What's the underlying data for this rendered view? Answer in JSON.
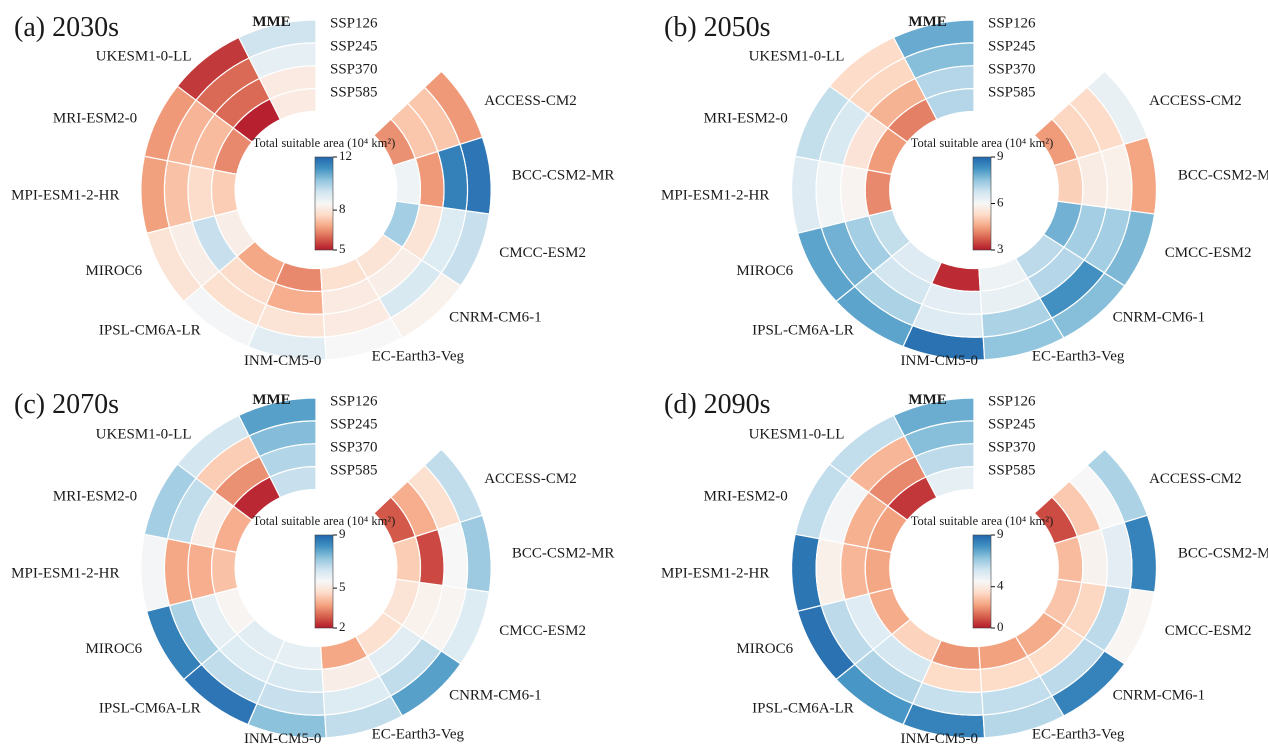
{
  "figure_type": "multi-panel polar heatmap (circular ring heatmaps)",
  "models": [
    "MME",
    "UKESM1-0-LL",
    "MRI-ESM2-0",
    "MPI-ESM1-2-HR",
    "MIROC6",
    "IPSL-CM6A-LR",
    "INM-CM5-0",
    "EC-Earth3-Veg",
    "CNRM-CM6-1",
    "CMCC-ESM2",
    "BCC-CSM2-MR",
    "ACCESS-CM2"
  ],
  "ring_labels": [
    "SSP126",
    "SSP245",
    "SSP370",
    "SSP585"
  ],
  "colormap_stops": [
    "#b2182b",
    "#d6604d",
    "#f4a582",
    "#fddbc7",
    "#f7f7f7",
    "#d1e5f0",
    "#92c5de",
    "#4393c3",
    "#2166ac"
  ],
  "chart_data": [
    {
      "type": "polar_heatmap",
      "panel_label": "(a) 2030s",
      "colorbar": {
        "title": "Total suitable area (10⁴ km²)",
        "vmin": 5,
        "vmax": 12,
        "ticks": [
          12,
          8,
          5
        ]
      },
      "rings_outer_to_inner": [
        "SSP126",
        "SSP245",
        "SSP370",
        "SSP585"
      ],
      "models_counterclockwise_from_top": [
        "MME",
        "UKESM1-0-LL",
        "MRI-ESM2-0",
        "MPI-ESM1-2-HR",
        "MIROC6",
        "IPSL-CM6A-LR",
        "INM-CM5-0",
        "EC-Earth3-Veg",
        "CNRM-CM6-1",
        "CMCC-ESM2",
        "BCC-CSM2-MR",
        "ACCESS-CM2"
      ],
      "values": [
        [
          9.4,
          8.9,
          8.1,
          8.1
        ],
        [
          5.4,
          6.0,
          6.0,
          5.1
        ],
        [
          6.6,
          7.0,
          7.1,
          6.4
        ],
        [
          6.7,
          7.2,
          7.7,
          7.4
        ],
        [
          7.9,
          8.2,
          9.5,
          8.2
        ],
        [
          8.6,
          7.8,
          7.7,
          6.8
        ],
        [
          9.0,
          7.9,
          6.9,
          6.4
        ],
        [
          8.5,
          8.1,
          8.1,
          7.8
        ],
        [
          8.3,
          9.2,
          8.2,
          7.9
        ],
        [
          9.5,
          9.1,
          7.9,
          10.0
        ],
        [
          11.7,
          11.5,
          6.6,
          8.7
        ],
        [
          6.6,
          7.3,
          7.3,
          6.5
        ]
      ]
    },
    {
      "type": "polar_heatmap",
      "panel_label": "(b) 2050s",
      "colorbar": {
        "title": "Total suitable area (10⁴ km²)",
        "vmin": 3,
        "vmax": 9,
        "ticks": [
          9,
          6,
          3
        ]
      },
      "rings_outer_to_inner": [
        "SSP126",
        "SSP245",
        "SSP370",
        "SSP585"
      ],
      "models_counterclockwise_from_top": [
        "MME",
        "UKESM1-0-LL",
        "MRI-ESM2-0",
        "MPI-ESM1-2-HR",
        "MIROC6",
        "IPSL-CM6A-LR",
        "INM-CM5-0",
        "EC-Earth3-Veg",
        "CNRM-CM6-1",
        "CMCC-ESM2",
        "BCC-CSM2-MR",
        "ACCESS-CM2"
      ],
      "values": [
        [
          7.9,
          7.6,
          7.1,
          7.1
        ],
        [
          5.3,
          5.2,
          4.7,
          4.1
        ],
        [
          6.9,
          6.6,
          5.5,
          4.4
        ],
        [
          6.5,
          6.1,
          5.9,
          4.2
        ],
        [
          8.0,
          7.8,
          7.3,
          6.9
        ],
        [
          8.0,
          7.2,
          6.7,
          6.5
        ],
        [
          8.8,
          6.5,
          6.4,
          3.2
        ],
        [
          7.5,
          7.2,
          6.3,
          6.2
        ],
        [
          7.6,
          8.3,
          7.1,
          7.0
        ],
        [
          7.7,
          7.3,
          7.3,
          7.8
        ],
        [
          4.5,
          5.8,
          5.7,
          5.1
        ],
        [
          6.3,
          5.3,
          5.2,
          4.4
        ]
      ]
    },
    {
      "type": "polar_heatmap",
      "panel_label": "(c) 2070s",
      "colorbar": {
        "title": "Total suitable area (10⁴ km²)",
        "vmin": 2,
        "vmax": 9,
        "ticks": [
          9,
          5,
          2
        ]
      },
      "rings_outer_to_inner": [
        "SSP126",
        "SSP245",
        "SSP370",
        "SSP585"
      ],
      "models_counterclockwise_from_top": [
        "MME",
        "UKESM1-0-LL",
        "MRI-ESM2-0",
        "MPI-ESM1-2-HR",
        "MIROC6",
        "IPSL-CM6A-LR",
        "INM-CM5-0",
        "EC-Earth3-Veg",
        "CNRM-CM6-1",
        "CMCC-ESM2",
        "BCC-CSM2-MR",
        "ACCESS-CM2"
      ],
      "values": [
        [
          7.9,
          7.4,
          6.8,
          6.5
        ],
        [
          6.3,
          4.4,
          3.5,
          2.2
        ],
        [
          7.0,
          6.6,
          5.2,
          3.9
        ],
        [
          5.6,
          3.8,
          3.9,
          4.2
        ],
        [
          8.5,
          6.9,
          5.9,
          5.4
        ],
        [
          8.7,
          6.6,
          6.1,
          6.0
        ],
        [
          7.3,
          6.5,
          6.2,
          5.9
        ],
        [
          6.6,
          6.1,
          5.2,
          3.8
        ],
        [
          7.9,
          6.6,
          6.0,
          4.8
        ],
        [
          6.1,
          5.4,
          5.3,
          4.9
        ],
        [
          7.1,
          5.5,
          2.6,
          4.4
        ],
        [
          6.6,
          4.8,
          3.9,
          2.8
        ]
      ]
    },
    {
      "type": "polar_heatmap",
      "panel_label": "(d) 2090s",
      "colorbar": {
        "title": "Total suitable area (10⁴ km²)",
        "vmin": 0,
        "vmax": 9,
        "ticks": [
          9,
          4,
          0
        ]
      },
      "rings_outer_to_inner": [
        "SSP126",
        "SSP245",
        "SSP370",
        "SSP585"
      ],
      "models_counterclockwise_from_top": [
        "MME",
        "UKESM1-0-LL",
        "MRI-ESM2-0",
        "MPI-ESM1-2-HR",
        "MIROC6",
        "IPSL-CM6A-LR",
        "INM-CM5-0",
        "EC-Earth3-Veg",
        "CNRM-CM6-1",
        "CMCC-ESM2",
        "BCC-CSM2-MR",
        "ACCESS-CM2"
      ],
      "values": [
        [
          7.3,
          6.9,
          6.0,
          5.0
        ],
        [
          5.9,
          2.6,
          1.8,
          0.5
        ],
        [
          5.9,
          4.6,
          2.5,
          2.2
        ],
        [
          8.6,
          4.2,
          2.6,
          2.3
        ],
        [
          8.7,
          6.0,
          5.2,
          2.4
        ],
        [
          7.8,
          6.2,
          5.5,
          3.2
        ],
        [
          8.3,
          5.8,
          3.4,
          2.0
        ],
        [
          6.1,
          5.9,
          3.4,
          2.2
        ],
        [
          8.3,
          6.0,
          3.4,
          2.4
        ],
        [
          4.4,
          6.0,
          3.3,
          2.9
        ],
        [
          8.3,
          5.1,
          4.3,
          2.7
        ],
        [
          6.3,
          4.5,
          3.0,
          0.8
        ]
      ]
    }
  ]
}
